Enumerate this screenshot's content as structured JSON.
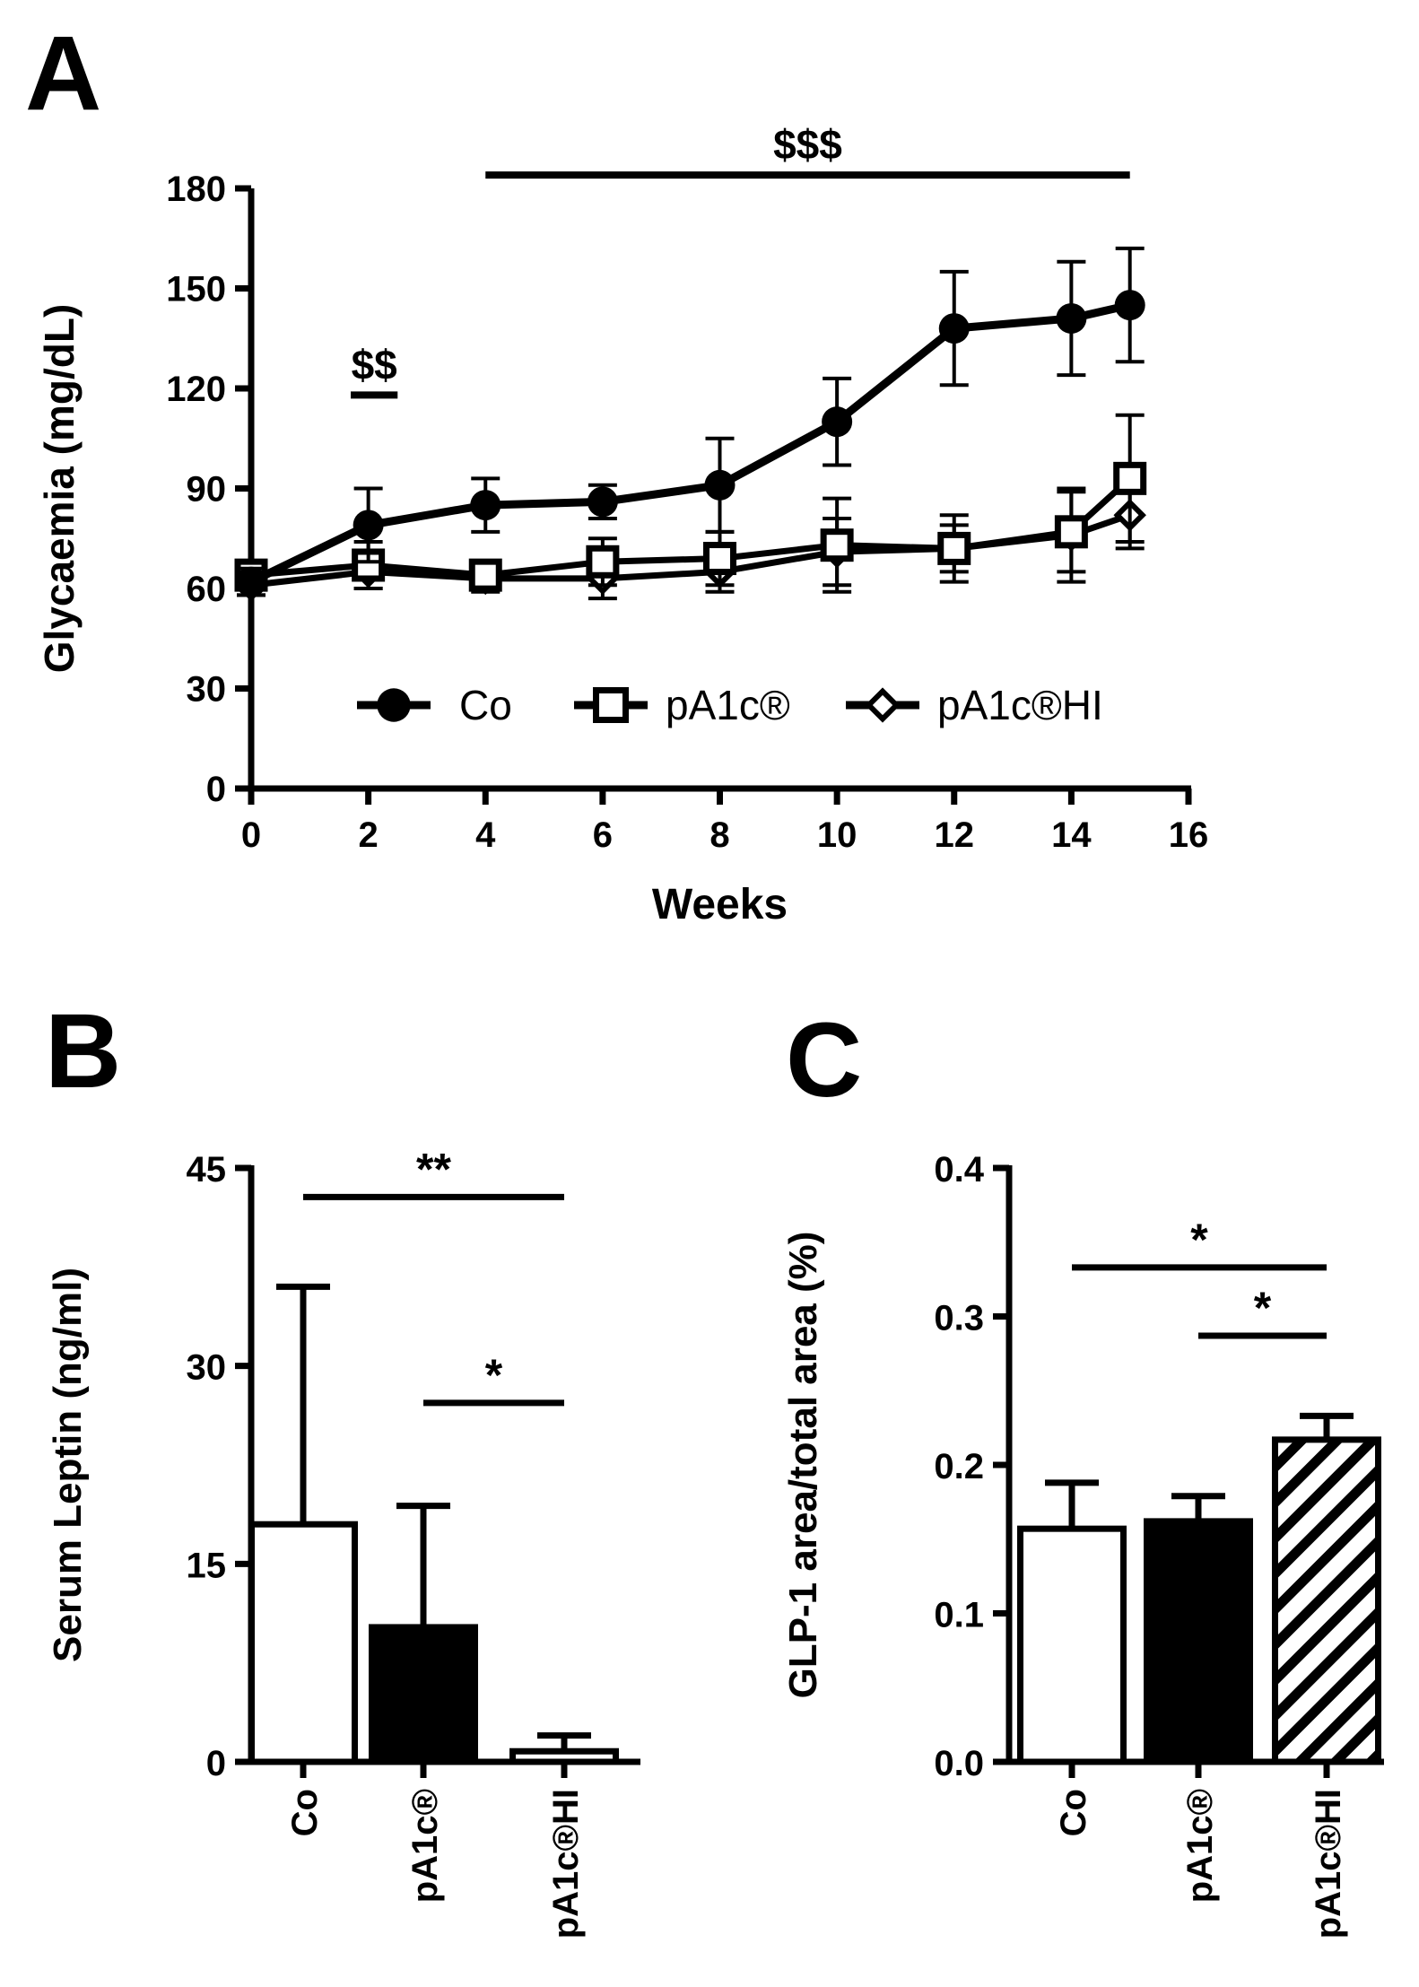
{
  "panels": {
    "a": {
      "letter": "A"
    },
    "b": {
      "letter": "B"
    },
    "c": {
      "letter": "C"
    }
  },
  "chart_data": [
    {
      "id": "A",
      "type": "line",
      "xlabel": "Weeks",
      "ylabel": "Glycaemia (mg/dL)",
      "xlim": [
        0,
        16
      ],
      "ylim": [
        0,
        180
      ],
      "xticks": [
        0,
        2,
        4,
        6,
        8,
        10,
        12,
        14,
        16
      ],
      "yticks": [
        0,
        30,
        60,
        90,
        120,
        150,
        180
      ],
      "x": [
        0,
        2,
        4,
        6,
        8,
        10,
        12,
        14,
        15
      ],
      "series": [
        {
          "name": "Co",
          "marker": "filled-circle",
          "values": [
            62,
            79,
            85,
            86,
            91,
            110,
            138,
            141,
            145
          ],
          "errors": [
            4,
            11,
            8,
            5,
            14,
            13,
            17,
            17,
            17
          ]
        },
        {
          "name": "pA1c®",
          "marker": "open-square",
          "values": [
            64,
            67,
            64,
            68,
            69,
            73,
            72,
            77,
            93
          ],
          "errors": [
            3,
            7,
            3,
            7,
            8,
            14,
            10,
            12,
            19
          ]
        },
        {
          "name": "pA1c®HI",
          "marker": "open-diamond",
          "values": [
            61,
            65,
            63,
            63,
            65,
            71,
            72,
            76,
            82
          ],
          "errors": [
            3,
            5,
            4,
            6,
            6,
            10,
            7,
            14,
            10
          ]
        }
      ],
      "annotations": [
        {
          "text": "$$",
          "x_from": 1.7,
          "x_to": 2.5,
          "y": 118
        },
        {
          "text": "$$$",
          "x_from": 4,
          "x_to": 15,
          "y": 184
        }
      ],
      "legend": "bottom-center"
    },
    {
      "id": "B",
      "type": "bar",
      "categories": [
        "Co",
        "pA1c®",
        "pA1c®HI"
      ],
      "values": [
        18,
        10.2,
        0.8
      ],
      "errors": [
        18,
        9.2,
        1.2
      ],
      "fills": [
        "white",
        "black",
        "white"
      ],
      "ylabel": "Serum Leptin (ng/ml)",
      "ylim": [
        0,
        45
      ],
      "yticks": [
        0,
        15,
        30,
        45
      ],
      "significance": [
        {
          "from": 0,
          "to": 2,
          "label": "**",
          "y": 42.8
        },
        {
          "from": 1,
          "to": 2,
          "label": "*",
          "y": 27.2
        }
      ]
    },
    {
      "id": "C",
      "type": "bar",
      "categories": [
        "Co",
        "pA1c®",
        "pA1c®HI"
      ],
      "values": [
        0.157,
        0.162,
        0.217
      ],
      "errors": [
        0.031,
        0.017,
        0.016
      ],
      "fills": [
        "white",
        "black",
        "hatched"
      ],
      "ylabel": "GLP-1 area/total area  (%)",
      "ylim": [
        0,
        0.4
      ],
      "yticks": [
        "0.0",
        "0.1",
        "0.2",
        "0.3",
        "0.4"
      ],
      "significance": [
        {
          "from": 0,
          "to": 2,
          "label": "*",
          "y": 0.333
        },
        {
          "from": 1,
          "to": 2,
          "label": "*",
          "y": 0.287
        }
      ]
    }
  ]
}
